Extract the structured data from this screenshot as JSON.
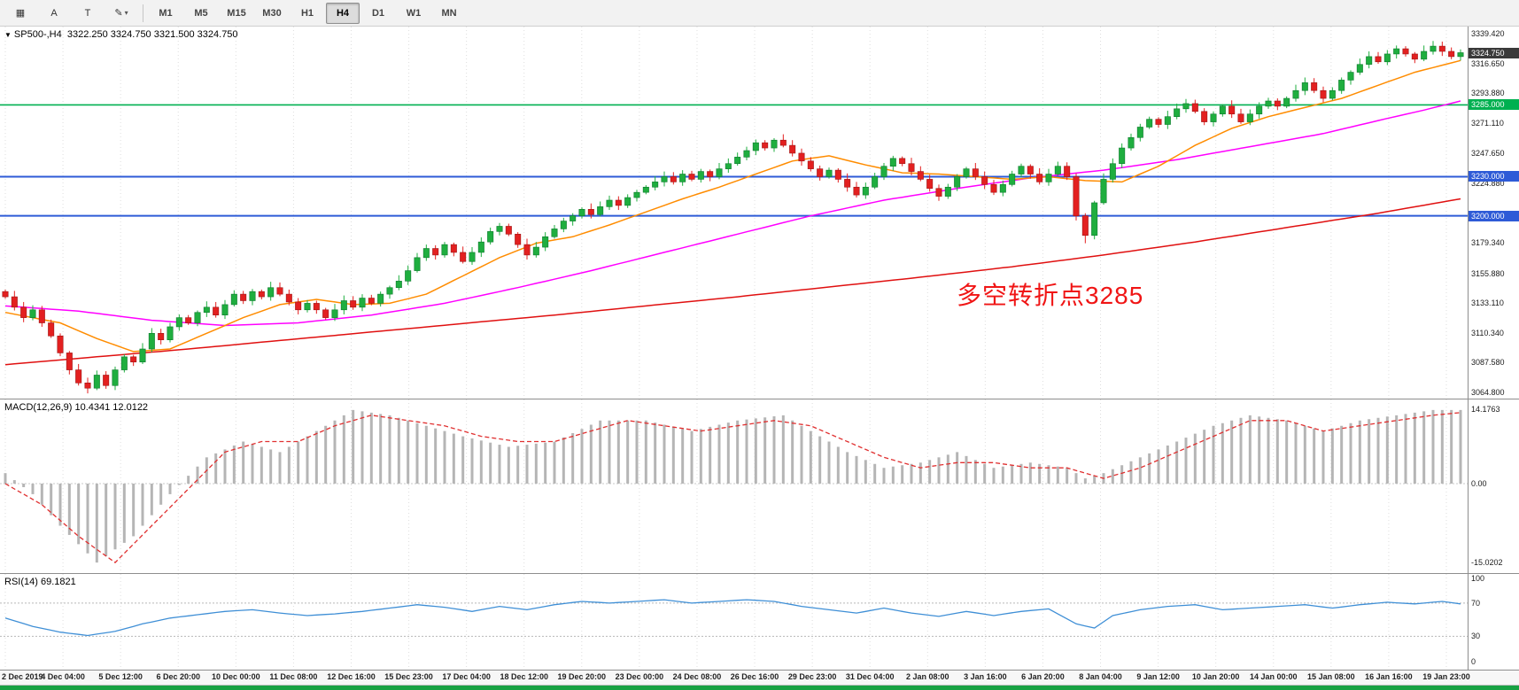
{
  "toolbar": {
    "icons": [
      {
        "name": "grid-icon",
        "glyph": "▦"
      },
      {
        "name": "text-label-icon",
        "glyph": "A"
      },
      {
        "name": "text-box-icon",
        "glyph": "T"
      },
      {
        "name": "draw-shapes-icon",
        "glyph": "✎",
        "caret": true
      }
    ],
    "timeframes": [
      {
        "label": "M1"
      },
      {
        "label": "M5"
      },
      {
        "label": "M15"
      },
      {
        "label": "M30"
      },
      {
        "label": "H1"
      },
      {
        "label": "H4",
        "active": true
      },
      {
        "label": "D1"
      },
      {
        "label": "W1"
      },
      {
        "label": "MN"
      }
    ]
  },
  "header": {
    "symbol": "SP500-,H4",
    "ohlc": "3322.250 3324.750 3321.500 3324.750"
  },
  "annotation": {
    "text": "多空转折点3285",
    "color": "#f01515"
  },
  "chart_data": {
    "type": "candlestick",
    "title": "SP500-,H4",
    "timeframe": "H4",
    "price_panel": {
      "ylim": [
        3060,
        3345
      ],
      "ticks": [
        {
          "text": "3339.420",
          "value": 3339.42
        },
        {
          "text": "3316.650",
          "value": 3316.65
        },
        {
          "text": "3293.880",
          "value": 3293.88
        },
        {
          "text": "3271.110",
          "value": 3271.11
        },
        {
          "text": "3247.650",
          "value": 3247.65
        },
        {
          "text": "3224.880",
          "value": 3224.88
        },
        {
          "text": "3179.340",
          "value": 3179.34
        },
        {
          "text": "3155.880",
          "value": 3155.88
        },
        {
          "text": "3133.110",
          "value": 3133.11
        },
        {
          "text": "3110.340",
          "value": 3110.34
        },
        {
          "text": "3087.580",
          "value": 3087.58
        },
        {
          "text": "3064.800",
          "value": 3064.8
        }
      ],
      "current": {
        "value": 3324.75,
        "text": "3324.750",
        "color": "#3a3a3a"
      },
      "levels": [
        {
          "value": 3285,
          "text": "3285.000",
          "color": "#00b050",
          "width": 1.6
        },
        {
          "value": 3230,
          "text": "3230.000",
          "color": "#2e5bd7",
          "width": 2
        },
        {
          "value": 3200,
          "text": "3200.000",
          "color": "#2e5bd7",
          "width": 2
        }
      ],
      "closes": [
        3138,
        3130,
        3122,
        3128,
        3118,
        3108,
        3095,
        3082,
        3072,
        3068,
        3078,
        3070,
        3082,
        3092,
        3088,
        3098,
        3110,
        3105,
        3115,
        3122,
        3118,
        3126,
        3130,
        3124,
        3132,
        3140,
        3135,
        3142,
        3138,
        3145,
        3140,
        3134,
        3128,
        3133,
        3128,
        3122,
        3128,
        3135,
        3130,
        3137,
        3133,
        3140,
        3145,
        3150,
        3158,
        3168,
        3175,
        3170,
        3178,
        3172,
        3165,
        3172,
        3180,
        3188,
        3192,
        3186,
        3178,
        3170,
        3176,
        3184,
        3190,
        3196,
        3200,
        3205,
        3201,
        3207,
        3212,
        3208,
        3214,
        3218,
        3222,
        3226,
        3230,
        3226,
        3232,
        3228,
        3234,
        3230,
        3236,
        3240,
        3245,
        3250,
        3256,
        3252,
        3258,
        3254,
        3248,
        3242,
        3236,
        3230,
        3235,
        3228,
        3222,
        3216,
        3222,
        3230,
        3238,
        3244,
        3240,
        3234,
        3228,
        3221,
        3215,
        3222,
        3230,
        3236,
        3230,
        3224,
        3218,
        3224,
        3232,
        3238,
        3232,
        3226,
        3232,
        3238,
        3230,
        3200,
        3185,
        3210,
        3228,
        3240,
        3252,
        3260,
        3268,
        3274,
        3270,
        3276,
        3282,
        3286,
        3280,
        3272,
        3278,
        3284,
        3278,
        3272,
        3278,
        3284,
        3288,
        3284,
        3290,
        3296,
        3302,
        3296,
        3290,
        3296,
        3304,
        3310,
        3316,
        3322,
        3318,
        3324,
        3328,
        3324,
        3320,
        3326,
        3330,
        3326,
        3322,
        3325
      ],
      "special_lows": [
        [
          9,
          3064
        ],
        [
          118,
          3179
        ]
      ],
      "up_color": "#1fae3f",
      "down_color": "#e32020",
      "ma": {
        "fast": {
          "color": "#ff8c00",
          "points": [
            [
              0,
              3126
            ],
            [
              6,
              3118
            ],
            [
              10,
              3106
            ],
            [
              14,
              3096
            ],
            [
              18,
              3098
            ],
            [
              22,
              3110
            ],
            [
              26,
              3122
            ],
            [
              30,
              3132
            ],
            [
              34,
              3136
            ],
            [
              38,
              3132
            ],
            [
              42,
              3133
            ],
            [
              46,
              3140
            ],
            [
              50,
              3154
            ],
            [
              54,
              3168
            ],
            [
              58,
              3179
            ],
            [
              62,
              3184
            ],
            [
              66,
              3193
            ],
            [
              70,
              3203
            ],
            [
              74,
              3213
            ],
            [
              78,
              3222
            ],
            [
              82,
              3232
            ],
            [
              86,
              3242
            ],
            [
              90,
              3246
            ],
            [
              94,
              3239
            ],
            [
              98,
              3233
            ],
            [
              102,
              3232
            ],
            [
              106,
              3230
            ],
            [
              110,
              3228
            ],
            [
              114,
              3230
            ],
            [
              118,
              3227
            ],
            [
              122,
              3226
            ],
            [
              126,
              3238
            ],
            [
              130,
              3254
            ],
            [
              134,
              3267
            ],
            [
              138,
              3276
            ],
            [
              142,
              3283
            ],
            [
              146,
              3290
            ],
            [
              150,
              3300
            ],
            [
              154,
              3310
            ],
            [
              159,
              3319
            ]
          ]
        },
        "mid": {
          "color": "#ff00ff",
          "points": [
            [
              0,
              3131
            ],
            [
              8,
              3127
            ],
            [
              16,
              3120
            ],
            [
              24,
              3116
            ],
            [
              32,
              3118
            ],
            [
              40,
              3124
            ],
            [
              48,
              3133
            ],
            [
              56,
              3145
            ],
            [
              64,
              3158
            ],
            [
              72,
              3172
            ],
            [
              80,
              3186
            ],
            [
              88,
              3200
            ],
            [
              96,
              3212
            ],
            [
              104,
              3221
            ],
            [
              112,
              3229
            ],
            [
              120,
              3235
            ],
            [
              128,
              3243
            ],
            [
              136,
              3253
            ],
            [
              144,
              3263
            ],
            [
              150,
              3273
            ],
            [
              155,
              3281
            ],
            [
              159,
              3288
            ]
          ]
        },
        "slow": {
          "color": "#e01010",
          "points": [
            [
              0,
              3086
            ],
            [
              20,
              3098
            ],
            [
              40,
              3111
            ],
            [
              60,
              3124
            ],
            [
              80,
              3138
            ],
            [
              100,
              3153
            ],
            [
              110,
              3161
            ],
            [
              120,
              3170
            ],
            [
              130,
              3180
            ],
            [
              140,
              3191
            ],
            [
              150,
              3202
            ],
            [
              159,
              3213
            ]
          ]
        }
      }
    },
    "macd_panel": {
      "label": "MACD(12,26,9) 10.4341 12.0122",
      "ylim": [
        -17,
        16
      ],
      "ticks": [
        {
          "text": "14.1763",
          "value": 14.1763
        },
        {
          "text": "0.00",
          "value": 0
        },
        {
          "text": "-15.0202",
          "value": -15.0202
        }
      ],
      "hist_color": "#b5b5b5",
      "signal_color": "#e03030",
      "hist_points": [
        [
          0,
          2
        ],
        [
          3,
          -2
        ],
        [
          6,
          -8
        ],
        [
          10,
          -15
        ],
        [
          14,
          -10
        ],
        [
          18,
          -2
        ],
        [
          22,
          5
        ],
        [
          26,
          8
        ],
        [
          30,
          6
        ],
        [
          34,
          10
        ],
        [
          38,
          14
        ],
        [
          42,
          13
        ],
        [
          46,
          11
        ],
        [
          50,
          9
        ],
        [
          55,
          7
        ],
        [
          60,
          8
        ],
        [
          65,
          12
        ],
        [
          70,
          12
        ],
        [
          75,
          10
        ],
        [
          80,
          12
        ],
        [
          85,
          13
        ],
        [
          88,
          10
        ],
        [
          92,
          6
        ],
        [
          96,
          3
        ],
        [
          100,
          4
        ],
        [
          104,
          6
        ],
        [
          108,
          3
        ],
        [
          112,
          4
        ],
        [
          116,
          3
        ],
        [
          118,
          1
        ],
        [
          120,
          2
        ],
        [
          124,
          5
        ],
        [
          128,
          8
        ],
        [
          132,
          11
        ],
        [
          136,
          13
        ],
        [
          140,
          12
        ],
        [
          144,
          10
        ],
        [
          148,
          12
        ],
        [
          152,
          13
        ],
        [
          156,
          14
        ],
        [
          159,
          14
        ]
      ],
      "signal_points": [
        [
          0,
          0
        ],
        [
          4,
          -4
        ],
        [
          8,
          -10
        ],
        [
          12,
          -15
        ],
        [
          16,
          -8
        ],
        [
          20,
          -1
        ],
        [
          24,
          6
        ],
        [
          28,
          8
        ],
        [
          32,
          8
        ],
        [
          36,
          11
        ],
        [
          40,
          13
        ],
        [
          44,
          12
        ],
        [
          48,
          11
        ],
        [
          52,
          9
        ],
        [
          56,
          8
        ],
        [
          60,
          8
        ],
        [
          64,
          10
        ],
        [
          68,
          12
        ],
        [
          72,
          11
        ],
        [
          76,
          10
        ],
        [
          80,
          11
        ],
        [
          84,
          12
        ],
        [
          88,
          11
        ],
        [
          92,
          8
        ],
        [
          96,
          5
        ],
        [
          100,
          3
        ],
        [
          104,
          4
        ],
        [
          108,
          4
        ],
        [
          112,
          3
        ],
        [
          116,
          3
        ],
        [
          120,
          1
        ],
        [
          124,
          3
        ],
        [
          128,
          6
        ],
        [
          132,
          9
        ],
        [
          136,
          12
        ],
        [
          140,
          12
        ],
        [
          144,
          10
        ],
        [
          148,
          11
        ],
        [
          152,
          12
        ],
        [
          156,
          13
        ],
        [
          159,
          13.5
        ]
      ]
    },
    "rsi_panel": {
      "label": "RSI(14) 69.1821",
      "ylim": [
        -10,
        105
      ],
      "ticks": [
        {
          "text": "100",
          "value": 100
        },
        {
          "text": "70",
          "value": 70
        },
        {
          "text": "30",
          "value": 30
        },
        {
          "text": "0",
          "value": 0
        }
      ],
      "levels": [
        70,
        30
      ],
      "color": "#3f8fd6",
      "points": [
        [
          0,
          52
        ],
        [
          3,
          42
        ],
        [
          6,
          35
        ],
        [
          9,
          31
        ],
        [
          12,
          36
        ],
        [
          15,
          45
        ],
        [
          18,
          52
        ],
        [
          21,
          56
        ],
        [
          24,
          60
        ],
        [
          27,
          62
        ],
        [
          30,
          58
        ],
        [
          33,
          55
        ],
        [
          36,
          57
        ],
        [
          39,
          60
        ],
        [
          42,
          64
        ],
        [
          45,
          68
        ],
        [
          48,
          65
        ],
        [
          51,
          60
        ],
        [
          54,
          66
        ],
        [
          57,
          62
        ],
        [
          60,
          68
        ],
        [
          63,
          72
        ],
        [
          66,
          70
        ],
        [
          69,
          72
        ],
        [
          72,
          74
        ],
        [
          75,
          70
        ],
        [
          78,
          72
        ],
        [
          81,
          74
        ],
        [
          84,
          72
        ],
        [
          87,
          66
        ],
        [
          90,
          62
        ],
        [
          93,
          58
        ],
        [
          96,
          64
        ],
        [
          99,
          58
        ],
        [
          102,
          54
        ],
        [
          105,
          60
        ],
        [
          108,
          55
        ],
        [
          111,
          60
        ],
        [
          114,
          63
        ],
        [
          117,
          45
        ],
        [
          119,
          40
        ],
        [
          121,
          55
        ],
        [
          124,
          62
        ],
        [
          127,
          66
        ],
        [
          130,
          68
        ],
        [
          133,
          62
        ],
        [
          136,
          64
        ],
        [
          139,
          66
        ],
        [
          142,
          68
        ],
        [
          145,
          64
        ],
        [
          148,
          68
        ],
        [
          151,
          71
        ],
        [
          154,
          69
        ],
        [
          157,
          72
        ],
        [
          159,
          69
        ]
      ]
    },
    "x_labels": [
      "2 Dec 2019",
      "4 Dec 04:00",
      "5 Dec 12:00",
      "6 Dec 20:00",
      "10 Dec 00:00",
      "11 Dec 08:00",
      "12 Dec 16:00",
      "15 Dec 23:00",
      "17 Dec 04:00",
      "18 Dec 12:00",
      "19 Dec 20:00",
      "23 Dec 00:00",
      "24 Dec 08:00",
      "26 Dec 16:00",
      "29 Dec 23:00",
      "31 Dec 04:00",
      "2 Jan 08:00",
      "3 Jan 16:00",
      "6 Jan 20:00",
      "8 Jan 04:00",
      "9 Jan 12:00",
      "10 Jan 20:00",
      "14 Jan 00:00",
      "15 Jan 08:00",
      "16 Jan 16:00",
      "19 Jan 23:00"
    ]
  }
}
